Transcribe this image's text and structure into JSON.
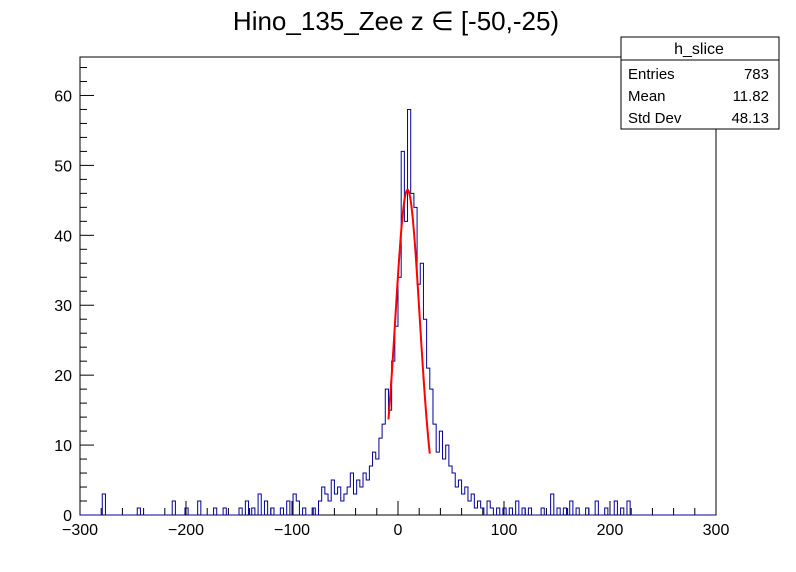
{
  "chart_data": {
    "type": "histogram",
    "title": "Hino_135_Zee z  ∈ [-50,-25)",
    "xlim": [
      -300,
      300
    ],
    "ylim": [
      0,
      65.5
    ],
    "x_ticks": [
      -300,
      -200,
      -100,
      0,
      100,
      200,
      300
    ],
    "y_ticks": [
      0,
      10,
      20,
      30,
      40,
      50,
      60
    ],
    "bin_width": 3,
    "histogram_color": "#000099",
    "fit_color": "#ff0000",
    "stats_box": {
      "name": "h_slice",
      "rows": [
        {
          "label": "Entries",
          "value": "783"
        },
        {
          "label": "Mean",
          "value": "11.82"
        },
        {
          "label": "Std Dev",
          "value": "48.13"
        }
      ]
    },
    "bins": [
      {
        "x": -279,
        "y": 3
      },
      {
        "x": -246,
        "y": 1
      },
      {
        "x": -213,
        "y": 2
      },
      {
        "x": -201,
        "y": 1
      },
      {
        "x": -189,
        "y": 2
      },
      {
        "x": -174,
        "y": 1
      },
      {
        "x": -165,
        "y": 1
      },
      {
        "x": -150,
        "y": 1
      },
      {
        "x": -144,
        "y": 2
      },
      {
        "x": -138,
        "y": 1
      },
      {
        "x": -132,
        "y": 3
      },
      {
        "x": -126,
        "y": 2
      },
      {
        "x": -120,
        "y": 1
      },
      {
        "x": -111,
        "y": 1
      },
      {
        "x": -105,
        "y": 2
      },
      {
        "x": -99,
        "y": 3
      },
      {
        "x": -96,
        "y": 2
      },
      {
        "x": -90,
        "y": 1
      },
      {
        "x": -81,
        "y": 1
      },
      {
        "x": -75,
        "y": 2
      },
      {
        "x": -72,
        "y": 4
      },
      {
        "x": -69,
        "y": 3
      },
      {
        "x": -66,
        "y": 2
      },
      {
        "x": -63,
        "y": 5
      },
      {
        "x": -60,
        "y": 3
      },
      {
        "x": -57,
        "y": 4
      },
      {
        "x": -54,
        "y": 2
      },
      {
        "x": -51,
        "y": 3
      },
      {
        "x": -48,
        "y": 4
      },
      {
        "x": -45,
        "y": 6
      },
      {
        "x": -42,
        "y": 3
      },
      {
        "x": -39,
        "y": 5
      },
      {
        "x": -36,
        "y": 4
      },
      {
        "x": -33,
        "y": 6
      },
      {
        "x": -30,
        "y": 5
      },
      {
        "x": -27,
        "y": 7
      },
      {
        "x": -24,
        "y": 9
      },
      {
        "x": -21,
        "y": 8
      },
      {
        "x": -18,
        "y": 11
      },
      {
        "x": -15,
        "y": 13
      },
      {
        "x": -12,
        "y": 18
      },
      {
        "x": -9,
        "y": 15
      },
      {
        "x": -6,
        "y": 22
      },
      {
        "x": -3,
        "y": 27
      },
      {
        "x": 0,
        "y": 34
      },
      {
        "x": 3,
        "y": 52
      },
      {
        "x": 6,
        "y": 42
      },
      {
        "x": 9,
        "y": 58
      },
      {
        "x": 12,
        "y": 46
      },
      {
        "x": 15,
        "y": 44
      },
      {
        "x": 18,
        "y": 33
      },
      {
        "x": 21,
        "y": 36
      },
      {
        "x": 24,
        "y": 28
      },
      {
        "x": 27,
        "y": 21
      },
      {
        "x": 30,
        "y": 18
      },
      {
        "x": 33,
        "y": 13
      },
      {
        "x": 36,
        "y": 9
      },
      {
        "x": 39,
        "y": 12
      },
      {
        "x": 42,
        "y": 8
      },
      {
        "x": 45,
        "y": 10
      },
      {
        "x": 48,
        "y": 7
      },
      {
        "x": 51,
        "y": 6
      },
      {
        "x": 54,
        "y": 4
      },
      {
        "x": 57,
        "y": 5
      },
      {
        "x": 60,
        "y": 3
      },
      {
        "x": 63,
        "y": 4
      },
      {
        "x": 66,
        "y": 2
      },
      {
        "x": 69,
        "y": 3
      },
      {
        "x": 72,
        "y": 1
      },
      {
        "x": 75,
        "y": 2
      },
      {
        "x": 78,
        "y": 1
      },
      {
        "x": 84,
        "y": 2
      },
      {
        "x": 87,
        "y": 1
      },
      {
        "x": 93,
        "y": 1
      },
      {
        "x": 99,
        "y": 1
      },
      {
        "x": 105,
        "y": 1
      },
      {
        "x": 111,
        "y": 2
      },
      {
        "x": 117,
        "y": 1
      },
      {
        "x": 123,
        "y": 1
      },
      {
        "x": 135,
        "y": 1
      },
      {
        "x": 144,
        "y": 3
      },
      {
        "x": 150,
        "y": 1
      },
      {
        "x": 156,
        "y": 1
      },
      {
        "x": 162,
        "y": 2
      },
      {
        "x": 168,
        "y": 1
      },
      {
        "x": 177,
        "y": 1
      },
      {
        "x": 186,
        "y": 2
      },
      {
        "x": 195,
        "y": 1
      },
      {
        "x": 204,
        "y": 2
      },
      {
        "x": 210,
        "y": 1
      },
      {
        "x": 216,
        "y": 2
      }
    ],
    "fit": {
      "function": "gaussian",
      "amplitude": 46.5,
      "mean": 9,
      "sigma": 11.5,
      "range": [
        -9,
        30
      ]
    }
  }
}
